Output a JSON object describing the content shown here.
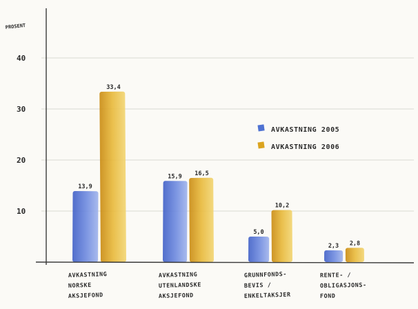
{
  "chart_data": {
    "type": "bar",
    "ylabel": "PROSENT",
    "ylim": [
      0,
      50
    ],
    "yticks": [
      10,
      20,
      30,
      40
    ],
    "grid": true,
    "legend_position": "right",
    "categories": [
      [
        "AVKASTNING",
        "NORSKE",
        "AKSJEFOND"
      ],
      [
        "AVKASTNING",
        "UTENLANDSKE",
        "AKSJEFOND"
      ],
      [
        "GRUNNFONDS-",
        "BEVIS /",
        "ENKELTAKSJER"
      ],
      [
        "RENTE- /",
        "OBLIGASJONS-",
        "FOND"
      ]
    ],
    "series": [
      {
        "name": "AVKASTNING 2005",
        "color": "#4f72d2",
        "values": [
          13.9,
          15.9,
          5.0,
          2.3
        ],
        "labels": [
          "13,9",
          "15,9",
          "5,0",
          "2,3"
        ]
      },
      {
        "name": "AVKASTNING 2006",
        "color": "#dba41f",
        "values": [
          33.4,
          16.5,
          10.2,
          2.8
        ],
        "labels": [
          "33,4",
          "16,5",
          "10,2",
          "2,8"
        ]
      }
    ]
  }
}
